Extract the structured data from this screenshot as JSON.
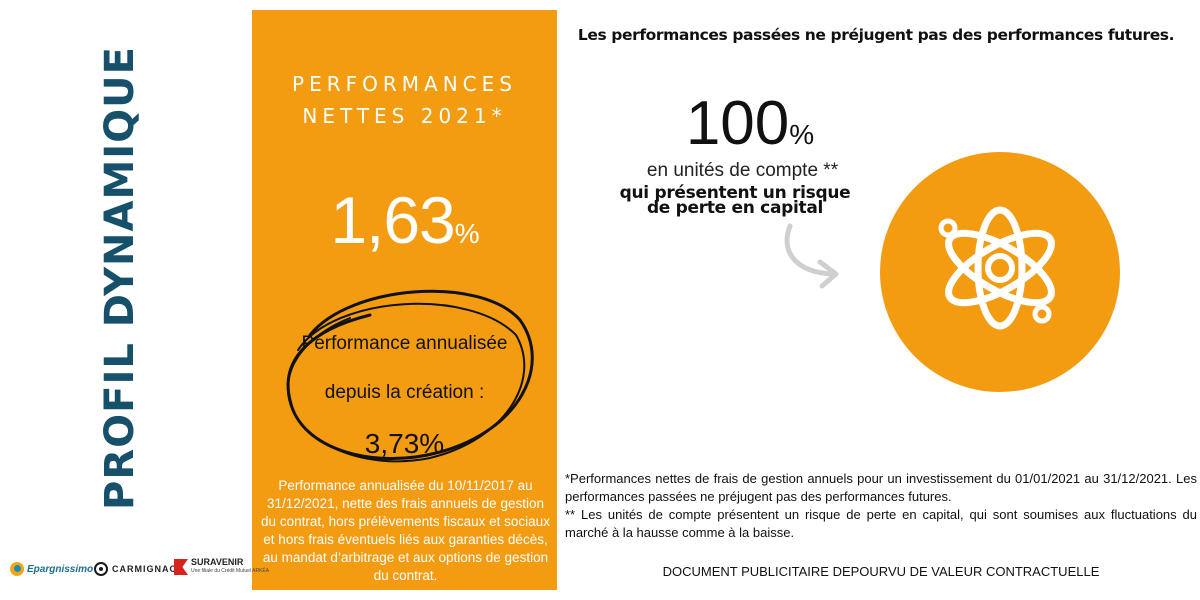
{
  "side_title": "PROFIL DYNAMIQUE",
  "panel": {
    "title_line1": "PERFORMANCES",
    "title_line2": "NETTES 2021*",
    "value": "1,63",
    "value_unit": "%",
    "annualized_label_line1": "Performance annualisée",
    "annualized_label_line2": "depuis la création :",
    "annualized_value": "3,73%",
    "note": "Performance annualisée du 10/11/2017 au 31/12/2021, nette des frais annuels de gestion du contrat, hors prélèvements fiscaux et sociaux et hors frais éventuels liés aux garanties décès, au mandat d’arbitrage et aux options de gestion du contrat."
  },
  "headline": "Les performances passées ne préjugent pas des performances futures.",
  "units": {
    "value": "100",
    "value_unit": "%",
    "label": "en unités de compte **",
    "risk_line1": "qui présentent un risque",
    "risk_line2": "de perte en capital"
  },
  "icons": {
    "arrow": "curved-arrow-icon",
    "atom": "atom-icon"
  },
  "footnote_line1": "*Performances nettes de frais de gestion annuels  pour un investissement du 01/01/2021 au 31/12/2021. Les performances passées ne préjugent pas des performances futures.",
  "footnote_line2": "** Les unités de compte présentent un risque de perte en capital, qui sont soumises aux fluctuations du marché à la hausse comme à la baisse.",
  "disclaimer": "DOCUMENT PUBLICITAIRE DEPOURVU DE VALEUR CONTRACTUELLE",
  "logos": {
    "epargnissimo": "Epargnissimo",
    "carmignac": "CARMIGNAC",
    "suravenir": "SURAVENIR",
    "suravenir_sub": "Une filiale du Crédit Mutuel ARKÉA"
  },
  "colors": {
    "accent_orange": "#f39c12",
    "title_blue": "#17506b",
    "text_dark": "#111111",
    "white": "#ffffff"
  }
}
